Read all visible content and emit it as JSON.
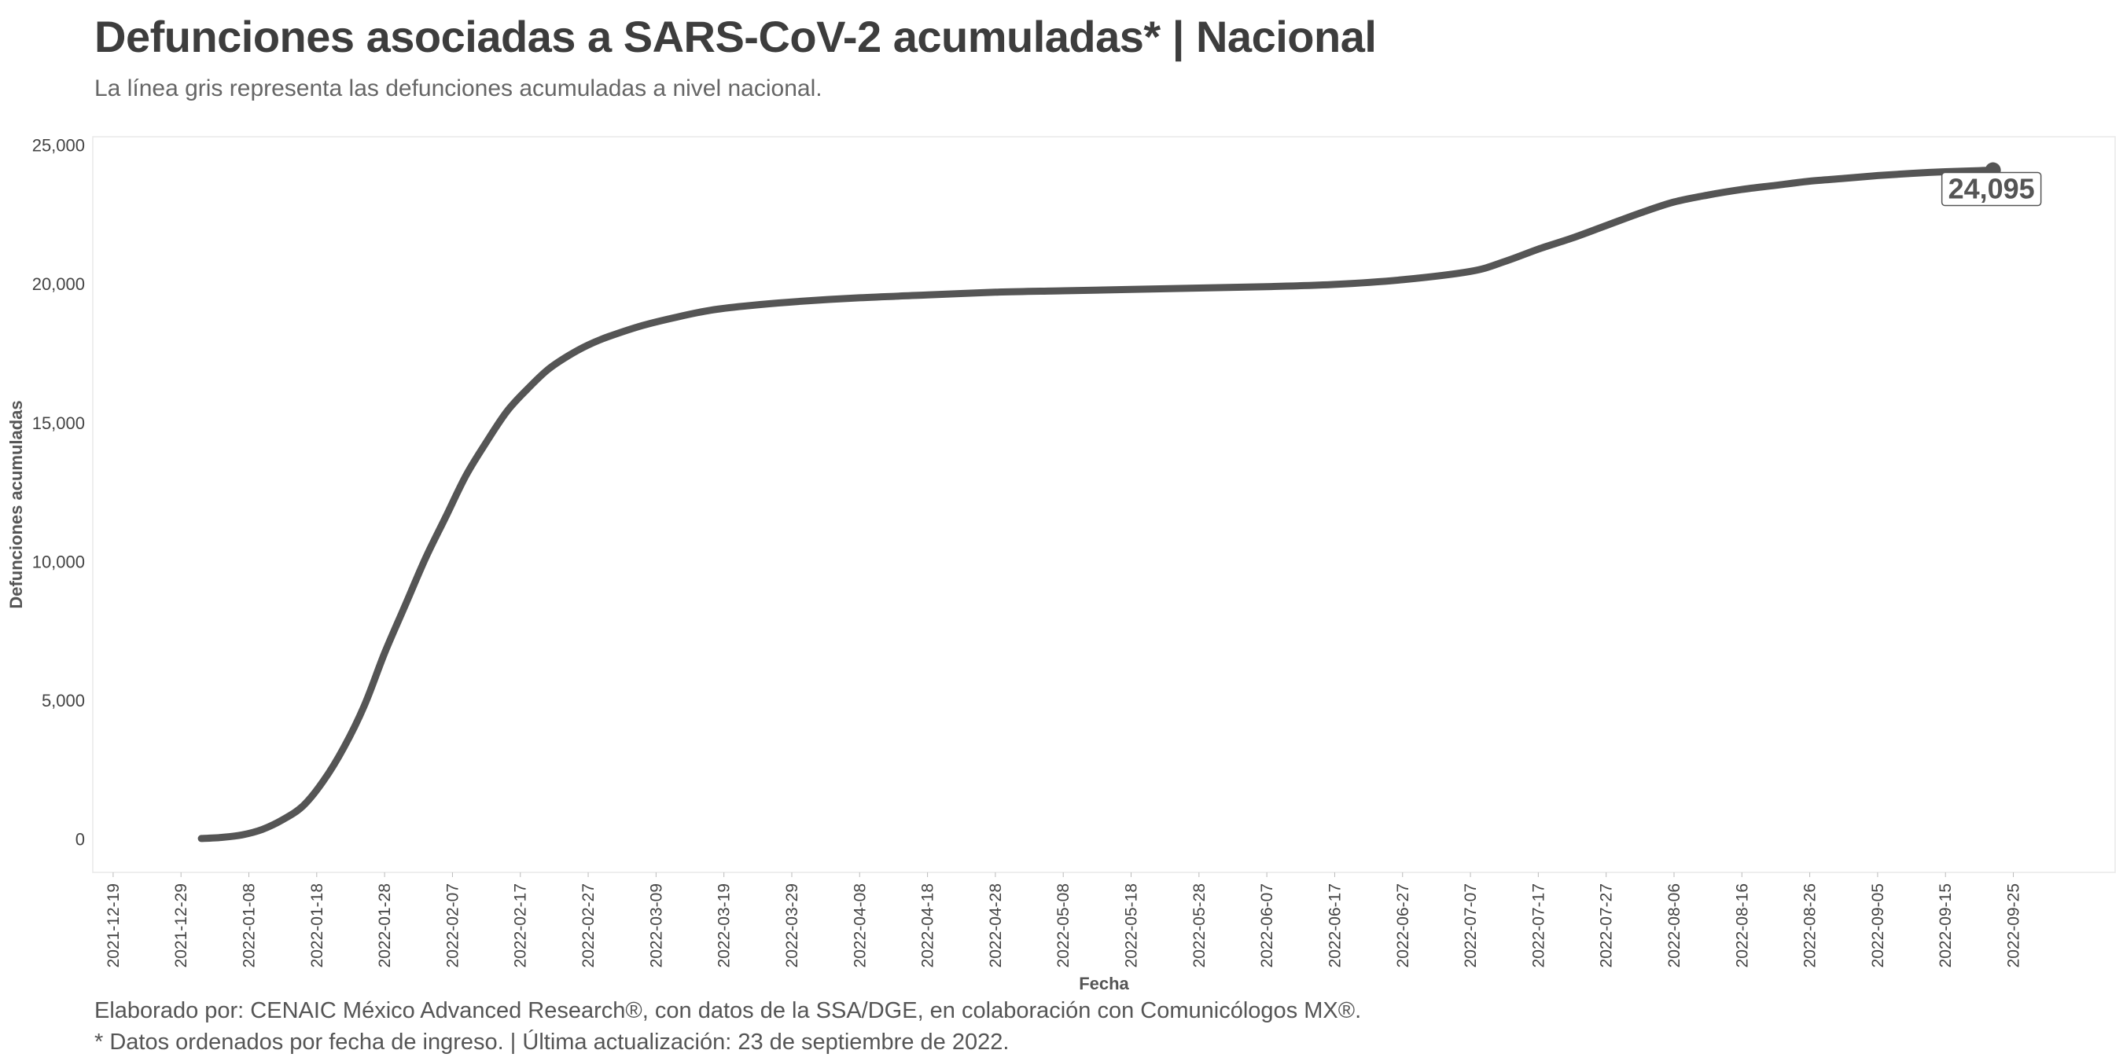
{
  "header": {
    "title": "Defunciones asociadas a SARS-CoV-2 acumuladas* | Nacional",
    "subtitle": "La línea gris representa las defunciones acumuladas a nivel nacional."
  },
  "caption": {
    "line1": "Elaborado por: CENAIC México Advanced Research®, con datos de la SSA/DGE, en colaboración con Comunicólogos MX®.",
    "line2": "* Datos ordenados por fecha de ingreso. | Última actualización: 23 de septiembre de 2022."
  },
  "chart_data": {
    "type": "line",
    "xlabel": "Fecha",
    "ylabel": "Defunciones acumuladas",
    "xlim": [
      "2021-12-16",
      "2022-10-10"
    ],
    "ylim": [
      -1200,
      25300
    ],
    "grid": false,
    "line_color": "#555555",
    "y_ticks": [
      0,
      5000,
      10000,
      15000,
      20000,
      25000
    ],
    "y_tick_labels": [
      "0",
      "5,000",
      "10,000",
      "15,000",
      "20,000",
      "25,000"
    ],
    "x_ticks": [
      "2021-12-19",
      "2021-12-29",
      "2022-01-08",
      "2022-01-18",
      "2022-01-28",
      "2022-02-07",
      "2022-02-17",
      "2022-02-27",
      "2022-03-09",
      "2022-03-19",
      "2022-03-29",
      "2022-04-08",
      "2022-04-18",
      "2022-04-28",
      "2022-05-08",
      "2022-05-18",
      "2022-05-28",
      "2022-06-07",
      "2022-06-17",
      "2022-06-27",
      "2022-07-07",
      "2022-07-17",
      "2022-07-27",
      "2022-08-06",
      "2022-08-16",
      "2022-08-26",
      "2022-09-05",
      "2022-09-15",
      "2022-09-25"
    ],
    "end_label": "24,095",
    "series": [
      {
        "x": [
          "2022-01-01",
          "2022-01-04",
          "2022-01-07",
          "2022-01-10",
          "2022-01-13",
          "2022-01-16",
          "2022-01-19",
          "2022-01-22",
          "2022-01-25",
          "2022-01-28",
          "2022-01-31",
          "2022-02-03",
          "2022-02-06",
          "2022-02-09",
          "2022-02-12",
          "2022-02-15",
          "2022-02-18",
          "2022-02-21",
          "2022-02-24",
          "2022-02-27",
          "2022-03-02",
          "2022-03-07",
          "2022-03-12",
          "2022-03-17",
          "2022-03-22",
          "2022-03-29",
          "2022-04-08",
          "2022-04-18",
          "2022-04-28",
          "2022-05-08",
          "2022-05-18",
          "2022-05-28",
          "2022-06-07",
          "2022-06-17",
          "2022-06-27",
          "2022-07-07",
          "2022-07-12",
          "2022-07-17",
          "2022-07-22",
          "2022-07-27",
          "2022-08-01",
          "2022-08-06",
          "2022-08-11",
          "2022-08-16",
          "2022-08-21",
          "2022-08-26",
          "2022-08-31",
          "2022-09-05",
          "2022-09-10",
          "2022-09-15",
          "2022-09-20",
          "2022-09-22"
        ],
        "y": [
          20,
          60,
          150,
          350,
          700,
          1200,
          2100,
          3300,
          4800,
          6700,
          8400,
          10100,
          11600,
          13100,
          14300,
          15400,
          16200,
          16900,
          17400,
          17800,
          18100,
          18500,
          18800,
          19050,
          19200,
          19350,
          19500,
          19600,
          19700,
          19750,
          19800,
          19850,
          19900,
          19980,
          20150,
          20450,
          20800,
          21250,
          21650,
          22100,
          22550,
          22950,
          23200,
          23400,
          23550,
          23700,
          23800,
          23900,
          23980,
          24040,
          24080,
          24095
        ]
      }
    ]
  }
}
